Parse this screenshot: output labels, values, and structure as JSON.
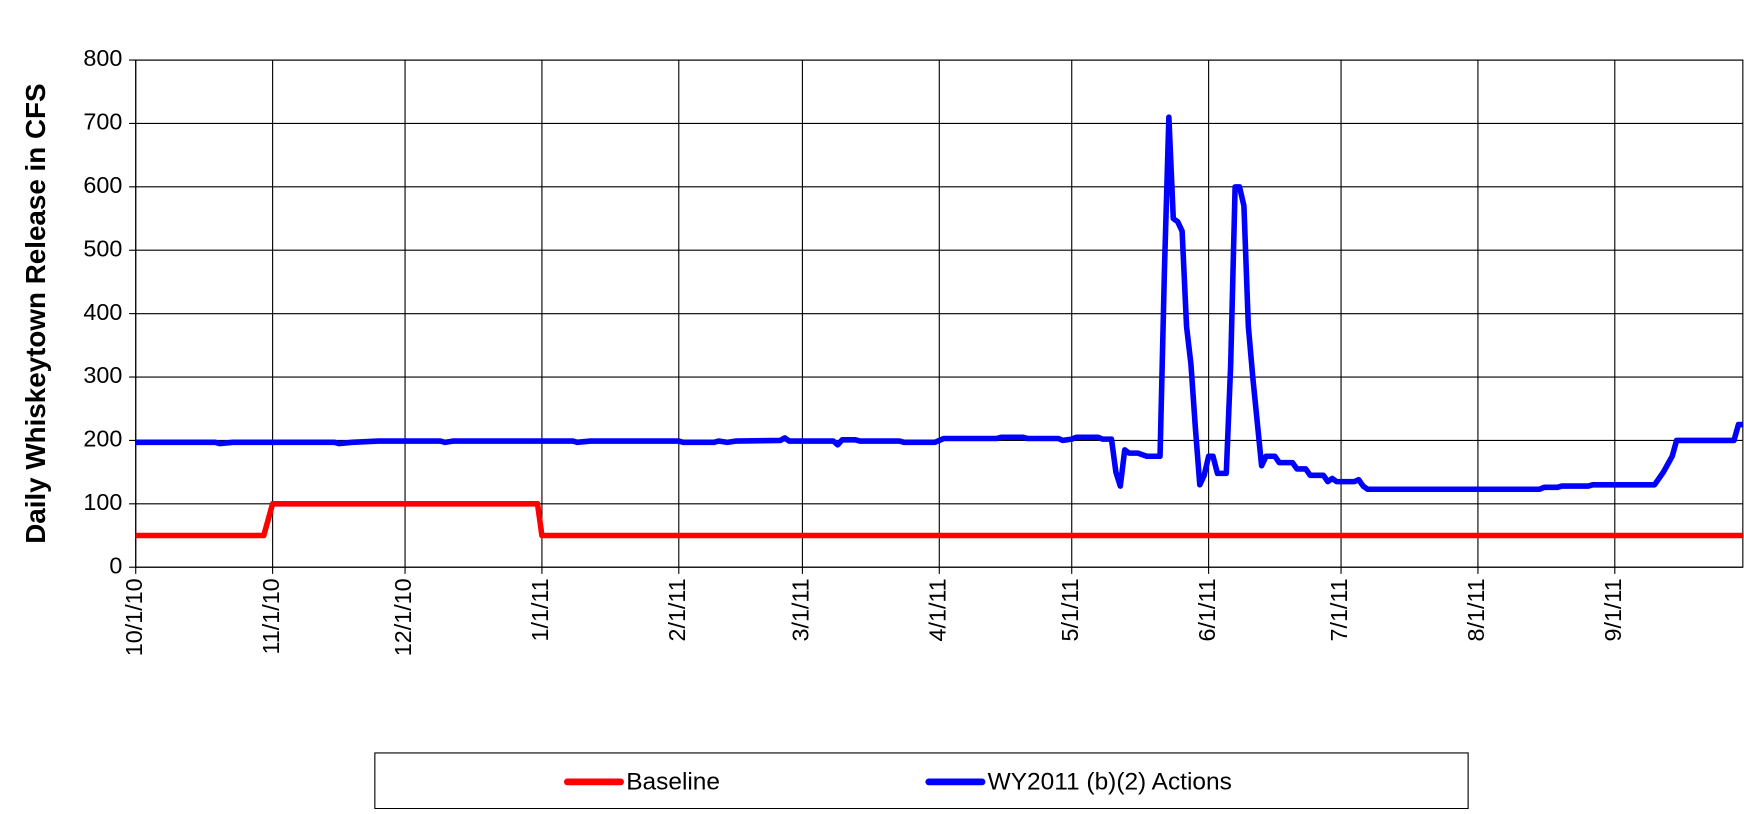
{
  "chart_data": {
    "type": "line",
    "y_label": "Daily Whiskeytown Release in CFS",
    "xlim": [
      "2010-10-01",
      "2011-09-30"
    ],
    "xticks": [
      {
        "value": "2010-10-01",
        "label": "10/1/10"
      },
      {
        "value": "2010-11-01",
        "label": "11/1/10"
      },
      {
        "value": "2010-12-01",
        "label": "12/1/10"
      },
      {
        "value": "2011-01-01",
        "label": "1/1/11"
      },
      {
        "value": "2011-02-01",
        "label": "2/1/11"
      },
      {
        "value": "2011-03-01",
        "label": "3/1/11"
      },
      {
        "value": "2011-04-01",
        "label": "4/1/11"
      },
      {
        "value": "2011-05-01",
        "label": "5/1/11"
      },
      {
        "value": "2011-06-01",
        "label": "6/1/11"
      },
      {
        "value": "2011-07-01",
        "label": "7/1/11"
      },
      {
        "value": "2011-08-01",
        "label": "8/1/11"
      },
      {
        "value": "2011-09-01",
        "label": "9/1/11"
      }
    ],
    "ylim": [
      0,
      800
    ],
    "yticks": [
      0,
      100,
      200,
      300,
      400,
      500,
      600,
      700,
      800
    ],
    "grid": true,
    "legend": "bottom",
    "series": [
      {
        "name": "Baseline",
        "color": "#ff0000",
        "x": [
          "2010-10-01",
          "2010-10-30",
          "2010-11-01",
          "2010-12-31",
          "2011-01-01",
          "2011-09-30"
        ],
        "values": [
          50,
          50,
          100,
          100,
          50,
          50
        ]
      },
      {
        "name": "WY2011 (b)(2) Actions",
        "color": "#0000ff",
        "x": [
          "2010-10-01",
          "2010-10-19",
          "2010-10-20",
          "2010-10-23",
          "2010-11-15",
          "2010-11-16",
          "2010-11-19",
          "2010-11-25",
          "2010-12-09",
          "2010-12-10",
          "2010-12-12",
          "2011-01-08",
          "2011-01-09",
          "2011-01-12",
          "2011-02-01",
          "2011-02-02",
          "2011-02-09",
          "2011-02-10",
          "2011-02-12",
          "2011-02-14",
          "2011-02-24",
          "2011-02-25",
          "2011-02-26",
          "2011-03-08",
          "2011-03-09",
          "2011-03-10",
          "2011-03-13",
          "2011-03-14",
          "2011-03-23",
          "2011-03-24",
          "2011-03-31",
          "2011-04-02",
          "2011-04-14",
          "2011-04-15",
          "2011-04-20",
          "2011-04-21",
          "2011-04-28",
          "2011-04-29",
          "2011-05-01",
          "2011-05-02",
          "2011-05-07",
          "2011-05-08",
          "2011-05-10",
          "2011-05-11",
          "2011-05-12",
          "2011-05-13",
          "2011-05-14",
          "2011-05-16",
          "2011-05-18",
          "2011-05-21",
          "2011-05-22",
          "2011-05-23",
          "2011-05-24",
          "2011-05-25",
          "2011-05-26",
          "2011-05-27",
          "2011-05-28",
          "2011-05-29",
          "2011-05-30",
          "2011-05-31",
          "2011-06-01",
          "2011-06-02",
          "2011-06-03",
          "2011-06-05",
          "2011-06-06",
          "2011-06-07",
          "2011-06-08",
          "2011-06-09",
          "2011-06-10",
          "2011-06-11",
          "2011-06-13",
          "2011-06-14",
          "2011-06-16",
          "2011-06-17",
          "2011-06-20",
          "2011-06-21",
          "2011-06-23",
          "2011-06-24",
          "2011-06-27",
          "2011-06-28",
          "2011-06-29",
          "2011-06-30",
          "2011-07-04",
          "2011-07-05",
          "2011-07-06",
          "2011-07-07",
          "2011-08-15",
          "2011-08-16",
          "2011-08-19",
          "2011-08-20",
          "2011-08-26",
          "2011-08-27",
          "2011-09-10",
          "2011-09-12",
          "2011-09-14",
          "2011-09-15",
          "2011-09-28",
          "2011-09-29",
          "2011-09-30"
        ],
        "values": [
          197,
          197,
          195,
          197,
          197,
          195,
          197,
          199,
          199,
          197,
          199,
          199,
          197,
          199,
          199,
          197,
          197,
          199,
          197,
          199,
          200,
          204,
          199,
          199,
          193,
          201,
          201,
          199,
          199,
          197,
          197,
          203,
          203,
          205,
          205,
          203,
          203,
          200,
          202,
          205,
          205,
          202,
          202,
          150,
          128,
          185,
          180,
          180,
          175,
          175,
          470,
          710,
          550,
          545,
          530,
          380,
          320,
          220,
          130,
          145,
          175,
          175,
          148,
          148,
          320,
          600,
          600,
          570,
          380,
          300,
          160,
          175,
          175,
          165,
          165,
          155,
          155,
          145,
          145,
          135,
          140,
          135,
          135,
          138,
          128,
          123,
          123,
          126,
          126,
          128,
          128,
          130,
          130,
          150,
          175,
          200,
          200,
          225,
          225
        ]
      }
    ]
  }
}
